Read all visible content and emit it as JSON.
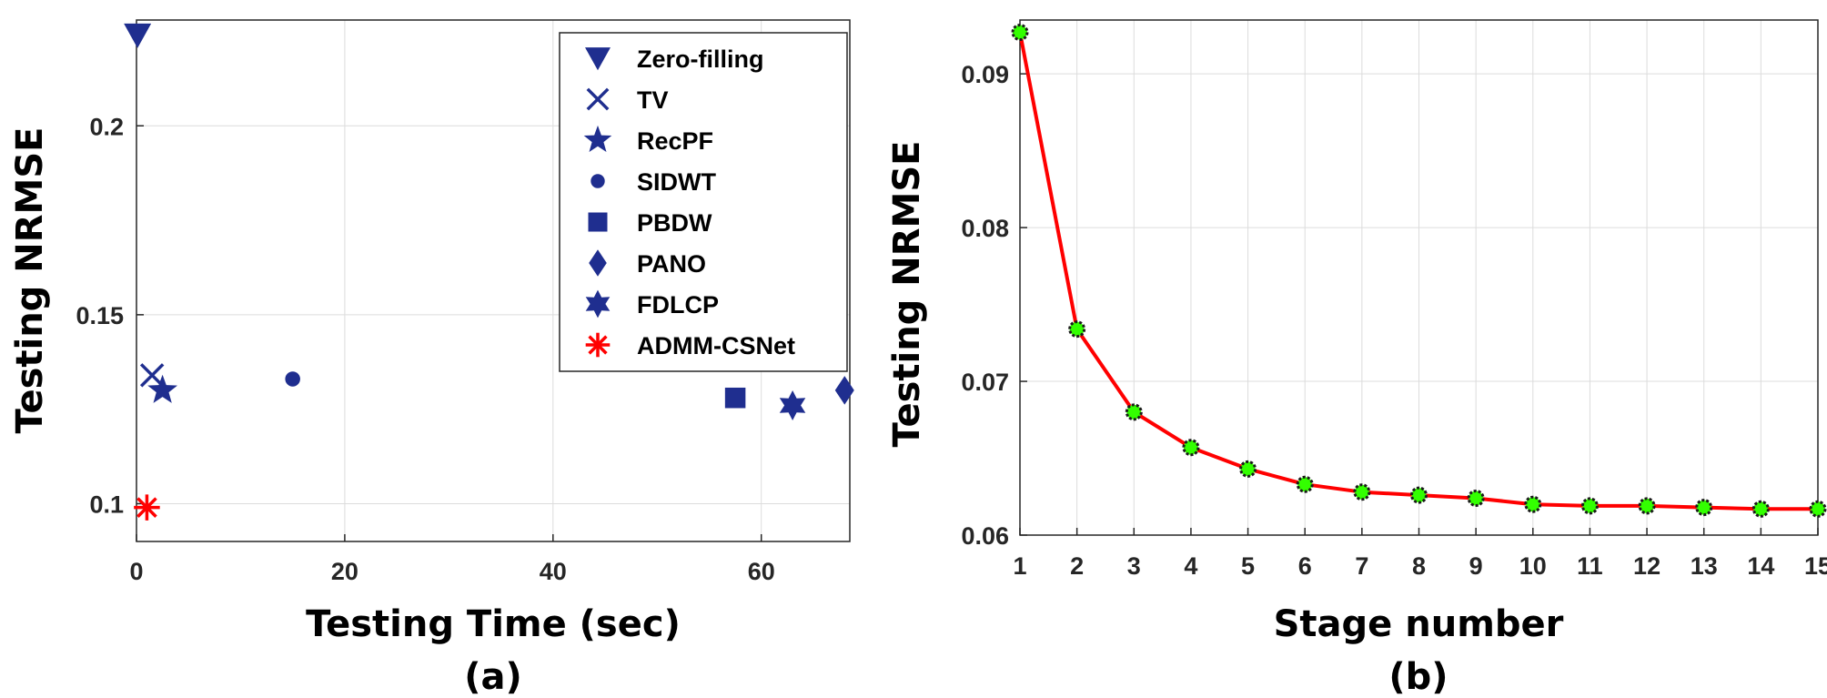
{
  "chart_data": [
    {
      "type": "scatter",
      "panel_label": "(a)",
      "xlabel": "Testing Time (sec)",
      "ylabel": "Testing NRMSE",
      "xlim": [
        0,
        68.5
      ],
      "ylim": [
        0.09,
        0.228
      ],
      "xticks": [
        0,
        20,
        40,
        60
      ],
      "xtick_labels": [
        "0",
        "20",
        "40",
        "60"
      ],
      "yticks": [
        0.1,
        0.15,
        0.2
      ],
      "ytick_labels": [
        "0.1",
        "0.15",
        "0.2"
      ],
      "grid": true,
      "legend_position": "top-right",
      "series": [
        {
          "name": "Zero-filling",
          "marker": "triangle-down",
          "color": "#1f2e8f",
          "x": [
            0.1
          ],
          "y": [
            0.224
          ]
        },
        {
          "name": "TV",
          "marker": "x",
          "color": "#1f2e8f",
          "x": [
            1.5
          ],
          "y": [
            0.134
          ]
        },
        {
          "name": "RecPF",
          "marker": "star5",
          "color": "#1f2e8f",
          "x": [
            2.5
          ],
          "y": [
            0.13
          ]
        },
        {
          "name": "SIDWT",
          "marker": "circle",
          "color": "#1f2e8f",
          "x": [
            15.0
          ],
          "y": [
            0.133
          ]
        },
        {
          "name": "PBDW",
          "marker": "square",
          "color": "#1f2e8f",
          "x": [
            57.5
          ],
          "y": [
            0.128
          ]
        },
        {
          "name": "PANO",
          "marker": "diamond",
          "color": "#1f2e8f",
          "x": [
            68.0
          ],
          "y": [
            0.13
          ]
        },
        {
          "name": "FDLCP",
          "marker": "star6",
          "color": "#1f2e8f",
          "x": [
            63.0
          ],
          "y": [
            0.126
          ]
        },
        {
          "name": "ADMM-CSNet",
          "marker": "asterisk",
          "color": "#ff0000",
          "x": [
            1.0
          ],
          "y": [
            0.099
          ]
        }
      ]
    },
    {
      "type": "line",
      "panel_label": "(b)",
      "xlabel": "Stage number",
      "ylabel": "Testing NRMSE",
      "xlim": [
        1,
        15
      ],
      "ylim": [
        0.06,
        0.0935
      ],
      "x": [
        1,
        2,
        3,
        4,
        5,
        6,
        7,
        8,
        9,
        10,
        11,
        12,
        13,
        14,
        15
      ],
      "xtick_labels": [
        "1",
        "2",
        "3",
        "4",
        "5",
        "6",
        "7",
        "8",
        "9",
        "10",
        "11",
        "12",
        "13",
        "14",
        "15"
      ],
      "yticks": [
        0.06,
        0.07,
        0.08,
        0.09
      ],
      "ytick_labels": [
        "0.06",
        "0.07",
        "0.08",
        "0.09"
      ],
      "grid": true,
      "series": [
        {
          "name": "Testing NRMSE",
          "line_color": "#ff0000",
          "marker_color": "#33ff00",
          "values": [
            0.0927,
            0.0734,
            0.068,
            0.0657,
            0.0643,
            0.0633,
            0.0628,
            0.0626,
            0.0624,
            0.062,
            0.0619,
            0.0619,
            0.0618,
            0.0617,
            0.0617
          ]
        }
      ]
    }
  ]
}
